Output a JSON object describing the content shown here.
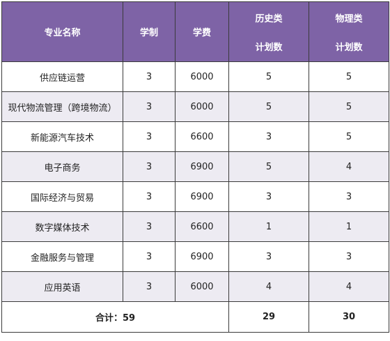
{
  "header": {
    "major": "专业名称",
    "duration": "学制",
    "tuition": "学费",
    "history_line1": "历史类",
    "history_line2": "计划数",
    "physics_line1": "物理类",
    "physics_line2": "计划数"
  },
  "rows": [
    {
      "major": "供应链运营",
      "duration": "3",
      "tuition": "6000",
      "history": "5",
      "physics": "5"
    },
    {
      "major": "现代物流管理（跨境物流）",
      "duration": "3",
      "tuition": "6000",
      "history": "5",
      "physics": "5"
    },
    {
      "major": "新能源汽车技术",
      "duration": "3",
      "tuition": "6600",
      "history": "3",
      "physics": "5"
    },
    {
      "major": "电子商务",
      "duration": "3",
      "tuition": "6900",
      "history": "5",
      "physics": "4"
    },
    {
      "major": "国际经济与贸易",
      "duration": "3",
      "tuition": "6900",
      "history": "3",
      "physics": "3"
    },
    {
      "major": "数字媒体技术",
      "duration": "3",
      "tuition": "6600",
      "history": "1",
      "physics": "1"
    },
    {
      "major": "金融服务与管理",
      "duration": "3",
      "tuition": "6900",
      "history": "3",
      "physics": "3"
    },
    {
      "major": "应用英语",
      "duration": "3",
      "tuition": "6000",
      "history": "4",
      "physics": "4"
    }
  ],
  "total": {
    "label": "合计：59",
    "history": "29",
    "physics": "30"
  },
  "colors": {
    "header_bg": "#7e63a6",
    "header_text": "#ffffff",
    "alt_row_bg": "#edebf2",
    "border": "#3a3a3a"
  }
}
